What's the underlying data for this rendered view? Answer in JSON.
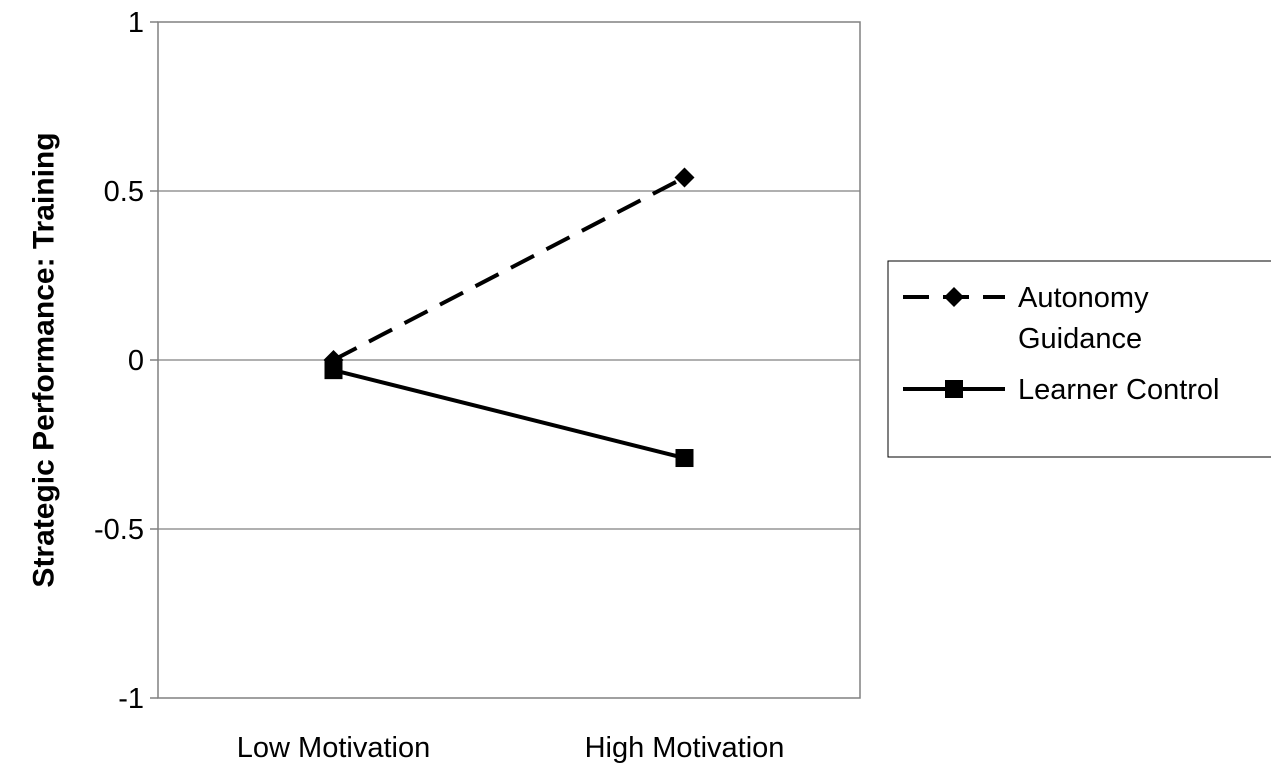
{
  "chart_data": {
    "type": "line",
    "title": "",
    "xlabel": "",
    "ylabel": "Strategic Performance: Training",
    "categories": [
      "Low Motivation",
      "High Motivation"
    ],
    "ylim": [
      -1,
      1
    ],
    "yticks": [
      {
        "value": 1,
        "label": "1"
      },
      {
        "value": 0.5,
        "label": "0.5"
      },
      {
        "value": 0,
        "label": "0"
      },
      {
        "value": -0.5,
        "label": "-0.5"
      },
      {
        "value": -1,
        "label": "-1"
      }
    ],
    "grid": true,
    "legend_position": "right",
    "series": [
      {
        "name": "Autonomy Guidance",
        "name_lines": [
          "Autonomy",
          "Guidance"
        ],
        "values": [
          0.0,
          0.54
        ],
        "marker": "diamond",
        "line_style": "dashed",
        "color": "#000000"
      },
      {
        "name": "Learner Control",
        "name_lines": [
          "Learner Control"
        ],
        "values": [
          -0.03,
          -0.29
        ],
        "marker": "square",
        "line_style": "solid",
        "color": "#000000"
      }
    ]
  }
}
